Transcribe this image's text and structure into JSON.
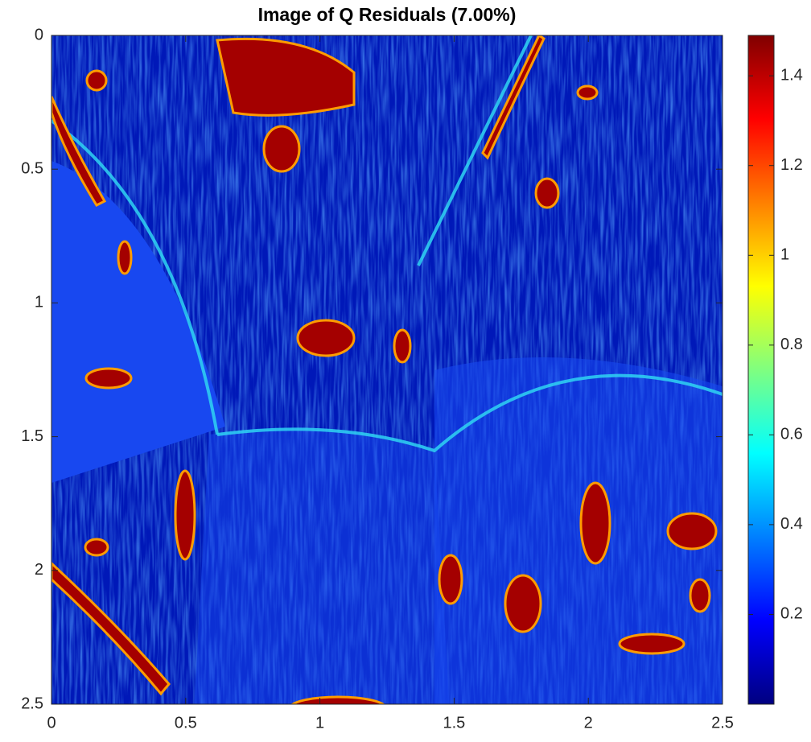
{
  "chart_data": {
    "type": "image",
    "title": "Image of Q Residuals (7.00%)",
    "xlim": [
      0,
      2.5
    ],
    "ylim": [
      0,
      2.5
    ],
    "y_reversed": true,
    "xticks": [
      0,
      0.5,
      1,
      1.5,
      2,
      2.5
    ],
    "yticks": [
      0,
      0.5,
      1,
      1.5,
      2,
      2.5
    ],
    "colormap": "jet",
    "colorbar": {
      "clim": [
        0,
        1.49
      ],
      "ticks": [
        0.2,
        0.4,
        0.6,
        0.8,
        1,
        1.2,
        1.4
      ]
    }
  }
}
